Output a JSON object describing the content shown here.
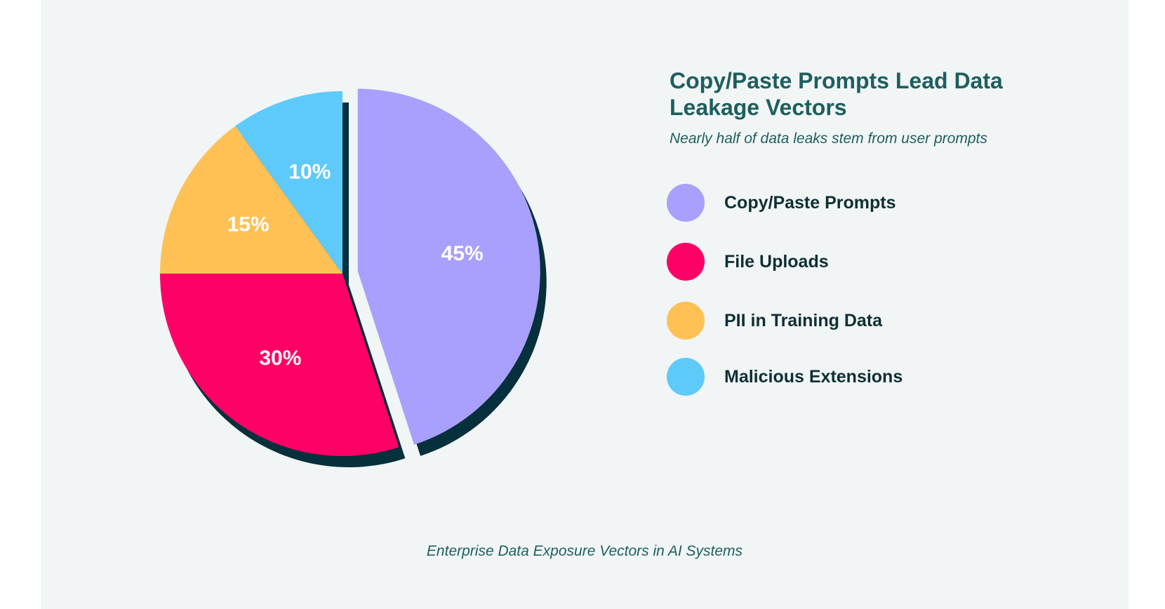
{
  "chart_data": {
    "type": "pie",
    "title": "Copy/Paste Prompts Lead Data Leakage Vectors",
    "subtitle": "Nearly half of data leaks stem from user prompts",
    "caption": "Enterprise Data Exposure Vectors in AI Systems",
    "legend_placement": "right",
    "categories": [
      "Copy/Paste Prompts",
      "File Uploads",
      "PII in Training Data",
      "Malicious Extensions"
    ],
    "values": [
      45,
      30,
      15,
      10
    ],
    "value_labels": [
      "45%",
      "30%",
      "15%",
      "10%"
    ],
    "colors": [
      "#a99ffc",
      "#ff0066",
      "#ffc155",
      "#5ecafa"
    ],
    "exploded_slice": "Copy/Paste Prompts",
    "shadow_color": "#06303b"
  }
}
